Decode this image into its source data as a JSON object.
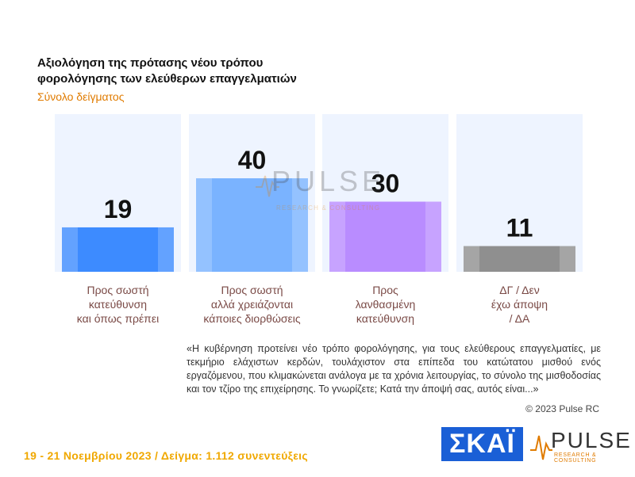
{
  "header": {
    "title": "Αξιολόγηση της πρότασης νέου τρόπου\nφορολόγησης των ελεύθερων επαγγελματιών",
    "subtitle": "Σύνολο δείγματος"
  },
  "chart_data": {
    "type": "bar",
    "categories": [
      "Προς σωστή\nκατεύθυνση\nκαι όπως πρέπει",
      "Προς σωστή\nαλλά χρειάζονται\nκάποιες διορθώσεις",
      "Προς\nλανθασμένη\nκατεύθυνση",
      "ΔΓ / Δεν\nέχω άποψη\n/ ΔΑ"
    ],
    "values": [
      19,
      40,
      30,
      11
    ],
    "colors": [
      "#3d8bff",
      "#7ab3ff",
      "#b98cff",
      "#8f8f8f"
    ],
    "background_color": "#eef4ff",
    "ylim": [
      0,
      60
    ]
  },
  "question": "«Η κυβέρνηση προτείνει νέο τρόπο φορολόγησης, για τους ελεύθερους επαγγελματίες, με τεκμήριο ελάχιστων κερδών, τουλάχιστον στα επίπεδα του κατώτατου μισθού ενός εργαζόμενου, που κλιμακώνεται ανάλογα με τα χρόνια λειτουργίας, το σύνολο της μισθοδοσίας και τον τζίρο της επιχείρησης. Το γνωρίζετε; Κατά την άποψή σας, αυτός είναι...»",
  "copyright": "© 2023 Pulse RC",
  "footer": {
    "info": "19 - 21 Νοεμβρίου 2023 / Δείγμα: 1.112 συνεντεύξεις"
  },
  "logos": {
    "skai": "ΣΚΑΪ",
    "pulse": "PULSE",
    "pulse_sub": "RESEARCH & CONSULTING",
    "pulse_icon": "pulse-wave-icon"
  }
}
